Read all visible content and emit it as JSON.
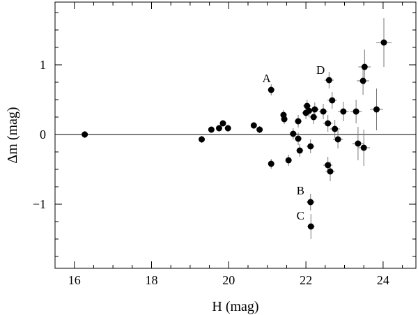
{
  "chart_data": {
    "type": "scatter",
    "xlabel": "H (mag)",
    "ylabel": "Δm (mag)",
    "xlim": [
      15.5,
      24.85
    ],
    "ylim": [
      -1.92,
      1.9
    ],
    "xticks": [
      16,
      18,
      20,
      22,
      24
    ],
    "xtick_labels": [
      "16",
      "18",
      "20",
      "22",
      "24"
    ],
    "yticks": [
      -1,
      0,
      1
    ],
    "ytick_labels": [
      "−1",
      "0",
      "1"
    ],
    "x_minor_step": 0.5,
    "y_minor_step": 0.25,
    "reference_line_y": 0,
    "grid": false,
    "points": [
      {
        "x": 16.27,
        "y": 0.0,
        "xerr": 0.04,
        "yerr": 0.05
      },
      {
        "x": 19.3,
        "y": -0.07,
        "xerr": 0.05,
        "yerr": 0.05
      },
      {
        "x": 19.55,
        "y": 0.07,
        "xerr": 0.05,
        "yerr": 0.04
      },
      {
        "x": 19.75,
        "y": 0.09,
        "xerr": 0.05,
        "yerr": 0.05
      },
      {
        "x": 19.85,
        "y": 0.16,
        "xerr": 0.05,
        "yerr": 0.04
      },
      {
        "x": 19.98,
        "y": 0.09,
        "xerr": 0.05,
        "yerr": 0.05
      },
      {
        "x": 20.65,
        "y": 0.13,
        "xerr": 0.06,
        "yerr": 0.05
      },
      {
        "x": 20.8,
        "y": 0.07,
        "xerr": 0.06,
        "yerr": 0.05
      },
      {
        "x": 21.1,
        "y": 0.64,
        "xerr": 0.07,
        "yerr": 0.08
      },
      {
        "x": 21.1,
        "y": -0.42,
        "xerr": 0.07,
        "yerr": 0.07
      },
      {
        "x": 21.42,
        "y": 0.28,
        "xerr": 0.08,
        "yerr": 0.07
      },
      {
        "x": 21.44,
        "y": 0.22,
        "xerr": 0.08,
        "yerr": 0.07
      },
      {
        "x": 21.55,
        "y": -0.37,
        "xerr": 0.08,
        "yerr": 0.08
      },
      {
        "x": 21.67,
        "y": 0.01,
        "xerr": 0.09,
        "yerr": 0.08
      },
      {
        "x": 21.8,
        "y": 0.19,
        "xerr": 0.09,
        "yerr": 0.09
      },
      {
        "x": 21.8,
        "y": -0.06,
        "xerr": 0.09,
        "yerr": 0.09
      },
      {
        "x": 21.84,
        "y": -0.23,
        "xerr": 0.09,
        "yerr": 0.09
      },
      {
        "x": 22.0,
        "y": 0.31,
        "xerr": 0.1,
        "yerr": 0.09
      },
      {
        "x": 22.03,
        "y": 0.41,
        "xerr": 0.1,
        "yerr": 0.09
      },
      {
        "x": 22.08,
        "y": 0.34,
        "xerr": 0.1,
        "yerr": 0.09
      },
      {
        "x": 22.12,
        "y": -0.17,
        "xerr": 0.1,
        "yerr": 0.1
      },
      {
        "x": 22.12,
        "y": -0.97,
        "xerr": 0.1,
        "yerr": 0.12
      },
      {
        "x": 22.13,
        "y": -1.32,
        "xerr": 0.1,
        "yerr": 0.18
      },
      {
        "x": 22.2,
        "y": 0.25,
        "xerr": 0.1,
        "yerr": 0.1
      },
      {
        "x": 22.23,
        "y": 0.36,
        "xerr": 0.11,
        "yerr": 0.1
      },
      {
        "x": 22.45,
        "y": 0.33,
        "xerr": 0.11,
        "yerr": 0.11
      },
      {
        "x": 22.57,
        "y": 0.16,
        "xerr": 0.12,
        "yerr": 0.12
      },
      {
        "x": 22.57,
        "y": -0.44,
        "xerr": 0.12,
        "yerr": 0.12
      },
      {
        "x": 22.6,
        "y": 0.78,
        "xerr": 0.12,
        "yerr": 0.12
      },
      {
        "x": 22.63,
        "y": -0.53,
        "xerr": 0.12,
        "yerr": 0.14
      },
      {
        "x": 22.68,
        "y": 0.49,
        "xerr": 0.12,
        "yerr": 0.12
      },
      {
        "x": 22.75,
        "y": 0.08,
        "xerr": 0.13,
        "yerr": 0.13
      },
      {
        "x": 22.83,
        "y": -0.07,
        "xerr": 0.13,
        "yerr": 0.13
      },
      {
        "x": 22.97,
        "y": 0.33,
        "xerr": 0.14,
        "yerr": 0.14
      },
      {
        "x": 23.3,
        "y": 0.33,
        "xerr": 0.15,
        "yerr": 0.17
      },
      {
        "x": 23.35,
        "y": -0.13,
        "xerr": 0.15,
        "yerr": 0.24
      },
      {
        "x": 23.48,
        "y": 0.77,
        "xerr": 0.16,
        "yerr": 0.2
      },
      {
        "x": 23.52,
        "y": 0.97,
        "xerr": 0.16,
        "yerr": 0.25
      },
      {
        "x": 23.5,
        "y": -0.19,
        "xerr": 0.16,
        "yerr": 0.26
      },
      {
        "x": 23.83,
        "y": 0.36,
        "xerr": 0.17,
        "yerr": 0.3
      },
      {
        "x": 24.02,
        "y": 1.32,
        "xerr": 0.2,
        "yerr": 0.35
      }
    ],
    "annotations": [
      {
        "text": "A",
        "x": 20.98,
        "y": 0.75
      },
      {
        "text": "D",
        "x": 22.38,
        "y": 0.87
      },
      {
        "text": "B",
        "x": 21.86,
        "y": -0.86
      },
      {
        "text": "C",
        "x": 21.86,
        "y": -1.22
      }
    ]
  }
}
